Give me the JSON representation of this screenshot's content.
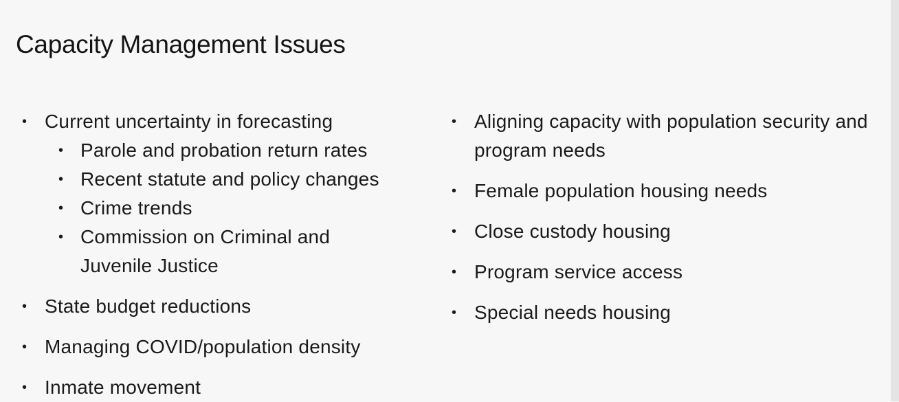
{
  "slide": {
    "title": "Capacity Management Issues"
  },
  "left_column": {
    "bullet_symbol": "•",
    "items": [
      {
        "text": "Current uncertainty in forecasting",
        "subitems": [
          "Parole and probation return rates",
          "Recent statute and policy changes",
          "Crime trends",
          "Commission on Criminal and Juvenile Justice"
        ]
      },
      {
        "text": "State budget reductions"
      },
      {
        "text": "Managing COVID/population density"
      },
      {
        "text": "Inmate movement"
      }
    ]
  },
  "right_column": {
    "bullet_symbol": "•",
    "items": [
      {
        "text": "Aligning capacity with population security and program needs"
      },
      {
        "text": "Female population housing needs"
      },
      {
        "text": "Close custody housing"
      },
      {
        "text": "Program service access"
      },
      {
        "text": "Special needs housing"
      }
    ]
  }
}
